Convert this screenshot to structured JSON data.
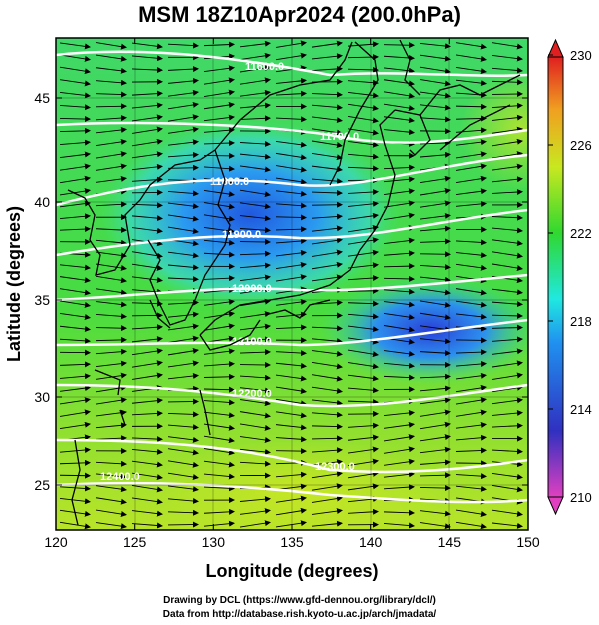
{
  "title": "MSM 18Z10Apr2024 (200.0hPa)",
  "xlabel": "Longitude (degrees)",
  "ylabel": "Latitude  (degrees)",
  "xticks": [
    "120",
    "125",
    "130",
    "135",
    "140",
    "145",
    "150"
  ],
  "yticks": [
    "25",
    "30",
    "35",
    "40",
    "45"
  ],
  "colorbar": {
    "labels": [
      "230",
      "226",
      "222",
      "218",
      "214",
      "210"
    ],
    "colors": [
      "#e040c0",
      "#3030c0",
      "#2090f0",
      "#20e8e0",
      "#30d830",
      "#c8e820",
      "#f0a020",
      "#e02020"
    ]
  },
  "contours": [
    {
      "label": "11600.0"
    },
    {
      "label": "11700.0"
    },
    {
      "label": "11800.0"
    },
    {
      "label": "11900.0"
    },
    {
      "label": "12000.0"
    },
    {
      "label": "12100.0"
    },
    {
      "label": "12200.0"
    },
    {
      "label": "12300.0"
    },
    {
      "label": "12400.0"
    }
  ],
  "footer": {
    "line1": "Drawing by DCL (https://www.gfd-dennou.org/library/dcl/)",
    "line2": "Data from http://database.rish.kyoto-u.ac.jp/arch/jmadata/"
  }
}
